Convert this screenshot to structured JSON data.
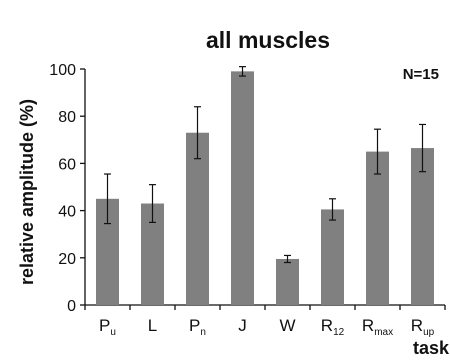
{
  "chart_data": {
    "type": "bar",
    "title": "all muscles",
    "annotation": "N=15",
    "xlabel": "task",
    "ylabel": "relative amplitude (%)",
    "ylim": [
      0,
      100
    ],
    "yticks": [
      0,
      20,
      40,
      60,
      80,
      100
    ],
    "grid": false,
    "categories": [
      {
        "base": "P",
        "sub": "u"
      },
      {
        "base": "L",
        "sub": ""
      },
      {
        "base": "P",
        "sub": "n"
      },
      {
        "base": "J",
        "sub": ""
      },
      {
        "base": "W",
        "sub": ""
      },
      {
        "base": "R",
        "sub": "12"
      },
      {
        "base": "R",
        "sub": "max"
      },
      {
        "base": "R",
        "sub": "up"
      }
    ],
    "values": [
      45,
      43,
      73,
      99,
      19.5,
      40.5,
      65,
      66.5
    ],
    "errors": [
      10.5,
      8,
      11,
      2,
      1.5,
      4.5,
      9.5,
      10
    ],
    "colors": {
      "bar": "#808080",
      "axis": "#111111",
      "error": "#111111"
    }
  }
}
